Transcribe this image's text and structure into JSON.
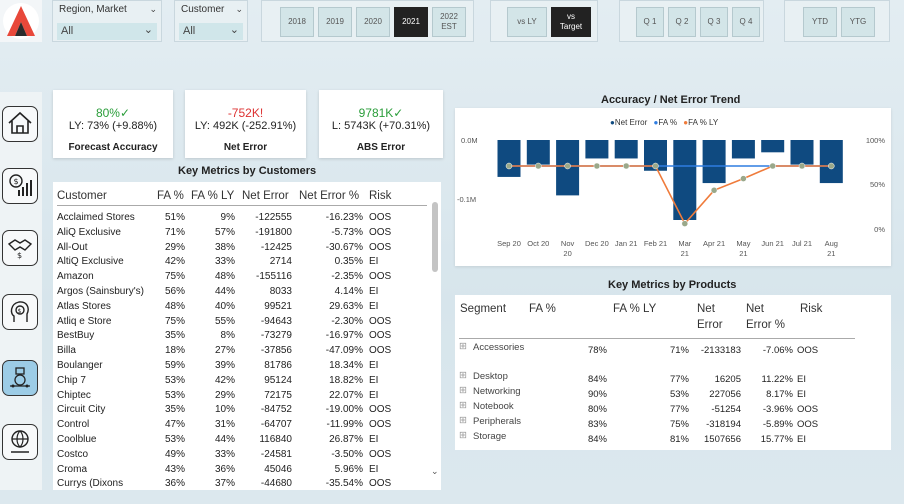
{
  "filters": {
    "region": {
      "label": "Region, Market",
      "value": "All"
    },
    "customer": {
      "label": "Customer",
      "value": "All"
    }
  },
  "years": [
    "2018",
    "2019",
    "2020",
    "2021",
    "2022",
    "EST"
  ],
  "compare": [
    "vs LY",
    "vs",
    "Target"
  ],
  "quarters": [
    "Q 1",
    "Q 2",
    "Q 3",
    "Q 4"
  ],
  "period": [
    "YTD",
    "YTG"
  ],
  "kpis": {
    "fa": {
      "value": "80%✓",
      "sub": "LY: 73% (+9.88%)",
      "title": "Forecast Accuracy"
    },
    "ne": {
      "value": "-752K!",
      "sub": "LY: 492K (-252.91%)",
      "title": "Net Error"
    },
    "abs": {
      "value": "9781K✓",
      "sub": "L: 5743K (+70.31%)",
      "title": "ABS Error"
    }
  },
  "customers_table": {
    "title": "Key Metrics by Customers",
    "headers": [
      "Customer",
      "FA %",
      "FA % LY",
      "Net Error",
      "Net Error %",
      "Risk"
    ],
    "rows": [
      [
        "Acclaimed Stores",
        "51%",
        "9%",
        "-122555",
        "-16.23%",
        "OOS"
      ],
      [
        "AliQ Exclusive",
        "71%",
        "57%",
        "-191800",
        "-5.73%",
        "OOS"
      ],
      [
        "All-Out",
        "29%",
        "38%",
        "-12425",
        "-30.67%",
        "OOS"
      ],
      [
        "AltiQ Exclusive",
        "42%",
        "33%",
        "2714",
        "0.35%",
        "EI"
      ],
      [
        "Amazon",
        "75%",
        "48%",
        "-155116",
        "-2.35%",
        "OOS"
      ],
      [
        "Argos (Sainsbury's)",
        "56%",
        "44%",
        "8033",
        "4.14%",
        "EI"
      ],
      [
        "Atlas Stores",
        "48%",
        "40%",
        "99521",
        "29.63%",
        "EI"
      ],
      [
        "Atliq e Store",
        "75%",
        "55%",
        "-94643",
        "-2.30%",
        "OOS"
      ],
      [
        "BestBuy",
        "35%",
        "8%",
        "-73279",
        "-16.97%",
        "OOS"
      ],
      [
        "Billa",
        "18%",
        "27%",
        "-37856",
        "-47.09%",
        "OOS"
      ],
      [
        "Boulanger",
        "59%",
        "39%",
        "81786",
        "18.34%",
        "EI"
      ],
      [
        "Chip 7",
        "53%",
        "42%",
        "95124",
        "18.82%",
        "EI"
      ],
      [
        "Chiptec",
        "53%",
        "29%",
        "72175",
        "22.07%",
        "EI"
      ],
      [
        "Circuit City",
        "35%",
        "10%",
        "-84752",
        "-19.00%",
        "OOS"
      ],
      [
        "Control",
        "47%",
        "31%",
        "-64707",
        "-11.99%",
        "OOS"
      ],
      [
        "Coolblue",
        "53%",
        "44%",
        "116840",
        "26.87%",
        "EI"
      ],
      [
        "Costco",
        "49%",
        "33%",
        "-24581",
        "-3.50%",
        "OOS"
      ],
      [
        "Croma",
        "43%",
        "36%",
        "45046",
        "5.96%",
        "EI"
      ],
      [
        "Currys (Dixons",
        "36%",
        "37%",
        "-44680",
        "-35.54%",
        "OOS"
      ]
    ]
  },
  "trend": {
    "title": "Accuracy / Net Error Trend",
    "legend": [
      "Net Error",
      "FA %",
      "FA % LY"
    ],
    "y_left": [
      "0.0M",
      "-0.1M"
    ],
    "y_right": [
      "100%",
      "50%",
      "0%"
    ]
  },
  "chart_data": {
    "type": "bar",
    "title": "Accuracy / Net Error Trend",
    "categories": [
      "Sep 20",
      "Oct 20",
      "Nov 20",
      "Dec 20",
      "Jan 21",
      "Feb 21",
      "Mar 21",
      "Apr 21",
      "May 21",
      "Jun 21",
      "Jul 21",
      "Aug 21"
    ],
    "category_lines": [
      [
        "Sep 20"
      ],
      [
        "Oct 20"
      ],
      [
        "Nov",
        "20"
      ],
      [
        "Dec 20"
      ],
      [
        "Jan 21"
      ],
      [
        "Feb 21"
      ],
      [
        "Mar",
        "21"
      ],
      [
        "Apr 21"
      ],
      [
        "May",
        "21"
      ],
      [
        "Jun 21"
      ],
      [
        "Jul 21"
      ],
      [
        "Aug",
        "21"
      ]
    ],
    "series": [
      {
        "name": "Net Error",
        "type": "bar",
        "color": "#0f4a80",
        "values": [
          -0.06,
          -0.04,
          -0.09,
          -0.03,
          -0.03,
          -0.05,
          -0.13,
          -0.07,
          -0.03,
          -0.02,
          -0.04,
          -0.07
        ]
      },
      {
        "name": "FA %",
        "type": "line",
        "color": "#2f7de1",
        "values": [
          80,
          80,
          80,
          80,
          80,
          80,
          80,
          80,
          80,
          80,
          80,
          80
        ]
      },
      {
        "name": "FA % LY",
        "type": "line",
        "color": "#ef7b3b",
        "values": [
          80,
          80,
          80,
          80,
          80,
          80,
          16,
          53,
          66,
          80,
          80,
          80
        ]
      }
    ],
    "ylim_left": [
      -0.13,
      0.0
    ],
    "ylim_right": [
      0,
      100
    ]
  },
  "products_table": {
    "title": "Key Metrics by Products",
    "headers": [
      "Segment",
      "FA %",
      "FA % LY",
      "Net Error",
      "Net Error %",
      "Risk"
    ],
    "rows": [
      [
        "Accessories",
        "78%",
        "71%",
        "-2133183",
        "-7.06%",
        "OOS"
      ],
      [
        "Desktop",
        "84%",
        "77%",
        "16205",
        "11.22%",
        "EI"
      ],
      [
        "Networking",
        "90%",
        "53%",
        "227056",
        "8.17%",
        "EI"
      ],
      [
        "Notebook",
        "80%",
        "77%",
        "-51254",
        "-3.96%",
        "OOS"
      ],
      [
        "Peripherals",
        "83%",
        "75%",
        "-318194",
        "-5.89%",
        "OOS"
      ],
      [
        "Storage",
        "84%",
        "81%",
        "1507656",
        "15.77%",
        "EI"
      ]
    ]
  }
}
